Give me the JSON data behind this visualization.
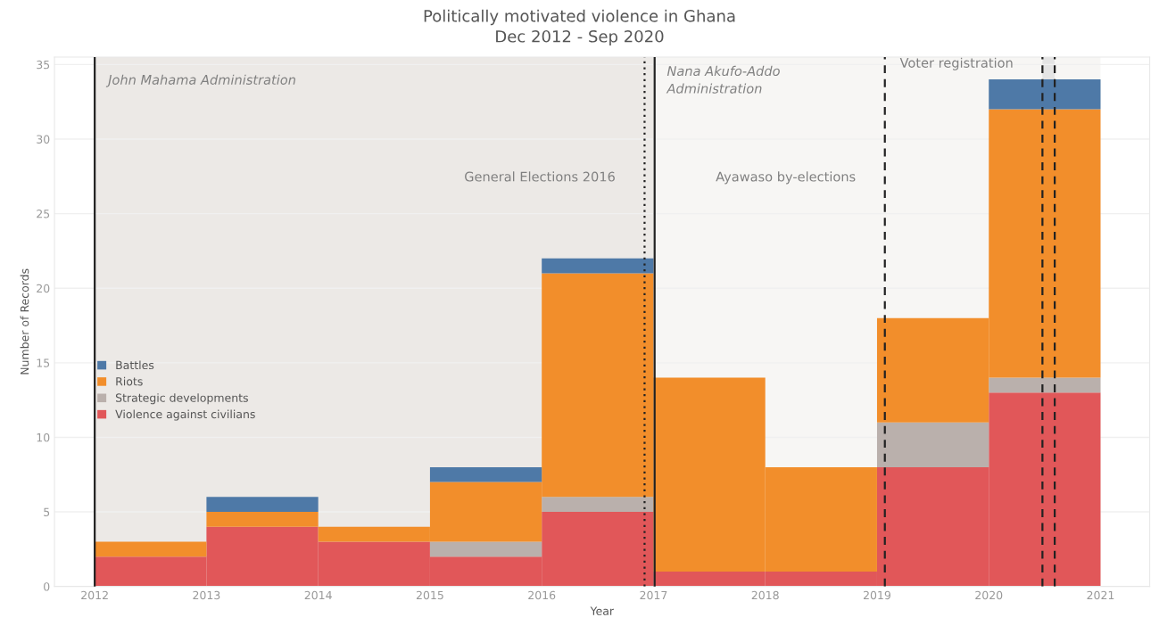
{
  "chart_data": {
    "type": "bar",
    "title": "Politically motivated violence in Ghana",
    "subtitle": "Dec 2012 - Sep 2020",
    "xlabel": "Year",
    "ylabel": "Number of Records",
    "x": [
      2012.5,
      2013.5,
      2014.5,
      2015.5,
      2016.5,
      2017.5,
      2018.5,
      2019.5,
      2020.5
    ],
    "stacked": true,
    "series": [
      {
        "name": "Violence against civilians",
        "color": "#e15759",
        "values": [
          2,
          4,
          3,
          2,
          5,
          1,
          1,
          8,
          13
        ]
      },
      {
        "name": "Strategic developments",
        "color": "#bab0ac",
        "values": [
          0,
          0,
          0,
          1,
          1,
          0,
          0,
          3,
          1
        ]
      },
      {
        "name": "Riots",
        "color": "#f28e2b",
        "values": [
          1,
          1,
          1,
          4,
          15,
          13,
          7,
          7,
          18
        ]
      },
      {
        "name": "Battles",
        "color": "#4e79a7",
        "values": [
          0,
          1,
          0,
          1,
          1,
          0,
          0,
          0,
          2
        ]
      }
    ],
    "xlim": [
      2011.64,
      2021.44
    ],
    "ylim": [
      0,
      35.5
    ],
    "xticks": [
      2012,
      2013,
      2014,
      2015,
      2016,
      2017,
      2018,
      2019,
      2020,
      2021
    ],
    "yticks": [
      0,
      5,
      10,
      15,
      20,
      25,
      30,
      35
    ],
    "grid": "y",
    "legend": "center left",
    "bands": [
      {
        "axis": "x",
        "from": 2012,
        "to": 2017,
        "color": "#ece9e6",
        "label": "John Mahama Administration"
      },
      {
        "axis": "x",
        "from": 2017,
        "to": 2021,
        "color": "#f7f6f4",
        "label": "Nana Akufo-Addo\nAdministration"
      },
      {
        "axis": "x",
        "from": 2020.48,
        "to": 2020.59,
        "color": "#e4e4e4",
        "label": "Voter registration"
      }
    ],
    "ref_lines": [
      {
        "axis": "x",
        "value": 2012,
        "line_style": "solid",
        "color": "#222222"
      },
      {
        "axis": "x",
        "value": 2016.92,
        "line_style": "dotted",
        "color": "#222222",
        "label": "General Elections 2016"
      },
      {
        "axis": "x",
        "value": 2017.01,
        "line_style": "solid",
        "color": "#222222"
      },
      {
        "axis": "x",
        "value": 2019.07,
        "line_style": "dashed",
        "color": "#222222",
        "label": "Ayawaso by-elections"
      },
      {
        "axis": "x",
        "value": 2020.48,
        "line_style": "dashed",
        "color": "#222222"
      },
      {
        "axis": "x",
        "value": 2020.59,
        "line_style": "dashed",
        "color": "#222222"
      }
    ]
  }
}
